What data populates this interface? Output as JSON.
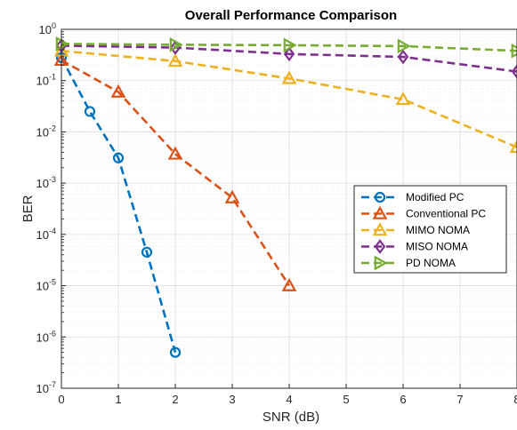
{
  "chart_data": {
    "type": "line",
    "title": "Overall Performance Comparison",
    "xlabel": "SNR (dB)",
    "ylabel": "BER",
    "xlim": [
      0,
      8
    ],
    "ylim": [
      1e-07,
      1
    ],
    "yscale": "log",
    "grid": true,
    "legend_position": "right-center",
    "x_ticks": [
      "0",
      "1",
      "2",
      "3",
      "4",
      "5",
      "6",
      "7",
      "8"
    ],
    "y_tick_exponents": [
      "0",
      "-1",
      "-2",
      "-3",
      "-4",
      "-5",
      "-6",
      "-7"
    ],
    "y_tick_base": "10",
    "series": [
      {
        "name": "Modified PC",
        "color": "#0072BD",
        "marker": "circle",
        "x": [
          0,
          0.5,
          1,
          1.5,
          2
        ],
        "y": [
          0.28,
          0.025,
          0.0031,
          4.5e-05,
          5e-07
        ]
      },
      {
        "name": "Conventional PC",
        "color": "#D95319",
        "marker": "triangle-up",
        "x": [
          0,
          1,
          2,
          3,
          4
        ],
        "y": [
          0.25,
          0.06,
          0.0037,
          0.00052,
          1e-05
        ]
      },
      {
        "name": "MIMO NOMA",
        "color": "#EDB120",
        "marker": "triangle-up",
        "x": [
          0,
          2,
          4,
          6,
          8
        ],
        "y": [
          0.38,
          0.24,
          0.11,
          0.043,
          0.005
        ]
      },
      {
        "name": "MISO NOMA",
        "color": "#7E2F8E",
        "marker": "diamond",
        "x": [
          0,
          2,
          4,
          6,
          8
        ],
        "y": [
          0.48,
          0.44,
          0.33,
          0.29,
          0.15
        ]
      },
      {
        "name": "PD NOMA",
        "color": "#77AC30",
        "marker": "triangle-right",
        "x": [
          0,
          2,
          4,
          6,
          8
        ],
        "y": [
          0.52,
          0.5,
          0.49,
          0.47,
          0.38
        ]
      }
    ]
  }
}
